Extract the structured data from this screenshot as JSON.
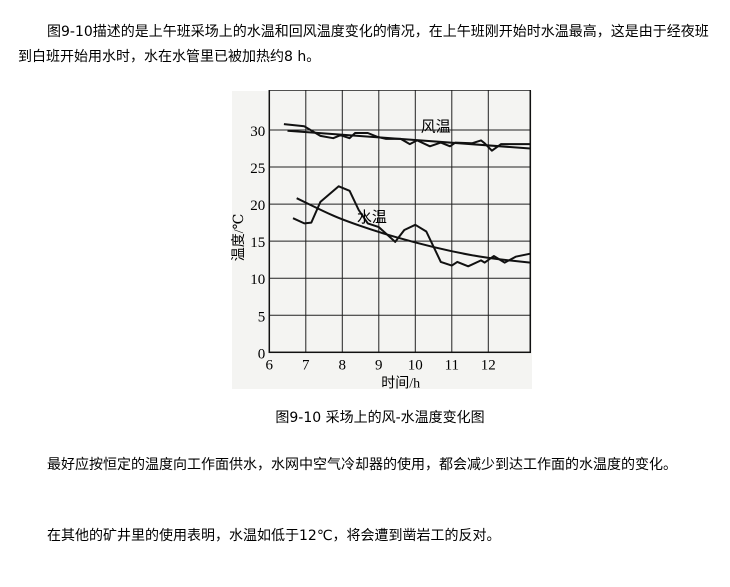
{
  "paragraphs": [
    "图9-10描述的是上午班采场上的水温和回风温度变化的情况，在上午班刚开始时水温最高，这是由于经夜班到白班开始用水时，水在水管里已被加热约8 h。",
    "最好应按恒定的温度向工作面供水，水网中空气冷却器的使用，都会减少到达工作面的水温度的变化。",
    "在其他的矿井里的使用表明，水温如低于12℃，将会遭到凿岩工的反对。"
  ],
  "caption": "图9-10 采场上的风-水温度变化图",
  "chart_data": {
    "type": "line",
    "xlabel": "时间/h",
    "ylabel": "温度/℃",
    "xlim": [
      6,
      13.15
    ],
    "ylim": [
      0,
      35.4
    ],
    "xticks": [
      "6",
      "7",
      "8",
      "9",
      "10",
      "11",
      "12"
    ],
    "yticks": [
      "0",
      "5",
      "10",
      "15",
      "20",
      "25",
      "30"
    ],
    "grid": true,
    "annotations": [
      {
        "text": "风温"
      },
      {
        "text": "水温"
      }
    ],
    "series": [
      {
        "name": "风温",
        "kind": "measured",
        "points": [
          [
            6.4,
            30.8
          ],
          [
            6.96,
            30.5
          ],
          [
            7.4,
            29.2
          ],
          [
            7.75,
            28.9
          ],
          [
            7.95,
            29.3
          ],
          [
            8.2,
            28.9
          ],
          [
            8.35,
            29.6
          ],
          [
            8.7,
            29.6
          ],
          [
            8.95,
            29.1
          ],
          [
            9.2,
            28.8
          ],
          [
            9.6,
            28.8
          ],
          [
            9.85,
            28.1
          ],
          [
            10.05,
            28.6
          ],
          [
            10.4,
            27.8
          ],
          [
            10.7,
            28.3
          ],
          [
            10.95,
            27.8
          ],
          [
            11.1,
            28.3
          ],
          [
            11.55,
            28.2
          ],
          [
            11.8,
            28.6
          ],
          [
            11.9,
            28.2
          ],
          [
            12.1,
            27.2
          ],
          [
            12.35,
            28.1
          ],
          [
            13.15,
            28.1
          ]
        ]
      },
      {
        "name": "风温",
        "kind": "trend",
        "points": [
          [
            6.5,
            29.9
          ],
          [
            13.15,
            27.5
          ]
        ]
      },
      {
        "name": "水温",
        "kind": "measured",
        "points": [
          [
            6.65,
            18.1
          ],
          [
            6.96,
            17.4
          ],
          [
            7.15,
            17.5
          ],
          [
            7.4,
            20.3
          ],
          [
            7.9,
            22.4
          ],
          [
            8.2,
            21.8
          ],
          [
            8.45,
            19.2
          ],
          [
            8.7,
            17.4
          ],
          [
            9.0,
            16.9
          ],
          [
            9.45,
            14.9
          ],
          [
            9.7,
            16.5
          ],
          [
            10.0,
            17.2
          ],
          [
            10.3,
            16.3
          ],
          [
            10.7,
            12.2
          ],
          [
            11.0,
            11.7
          ],
          [
            11.15,
            12.2
          ],
          [
            11.45,
            11.6
          ],
          [
            11.8,
            12.4
          ],
          [
            11.9,
            12.1
          ],
          [
            12.15,
            13.0
          ],
          [
            12.45,
            12.1
          ],
          [
            12.75,
            12.9
          ],
          [
            13.15,
            13.3
          ]
        ]
      },
      {
        "name": "水温",
        "kind": "trend",
        "points": [
          [
            6.75,
            20.8
          ],
          [
            7.5,
            19.0
          ],
          [
            8,
            17.9
          ],
          [
            9,
            16.2
          ],
          [
            10,
            14.8
          ],
          [
            11,
            13.6
          ],
          [
            12,
            12.7
          ],
          [
            13.15,
            12.1
          ]
        ]
      }
    ]
  }
}
